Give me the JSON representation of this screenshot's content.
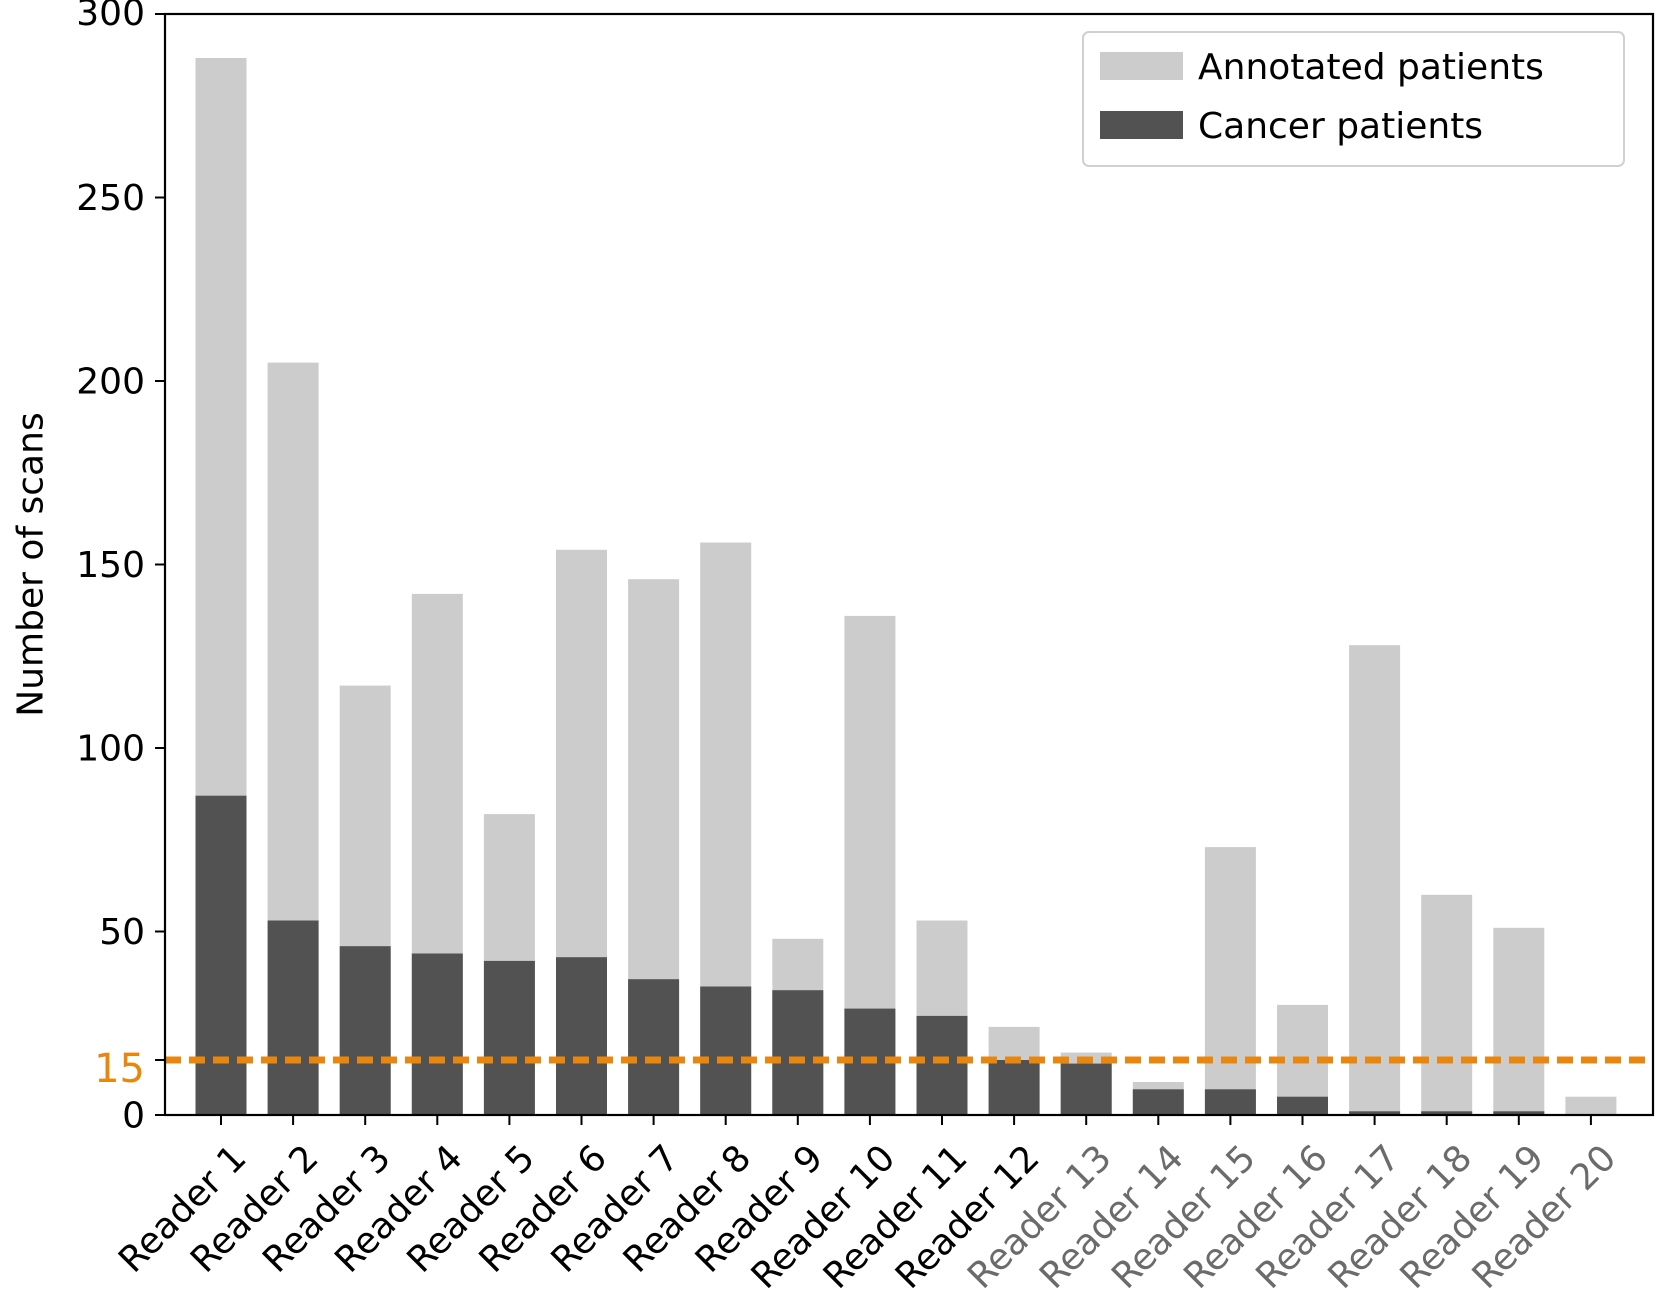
{
  "chart_data": {
    "type": "bar",
    "stacked": "overlay",
    "title": "",
    "xlabel": "",
    "ylabel": "Number of scans",
    "ylim": [
      0,
      300
    ],
    "yticks": [
      0,
      50,
      100,
      150,
      200,
      250,
      300
    ],
    "categories": [
      "Reader 1",
      "Reader 2",
      "Reader 3",
      "Reader 4",
      "Reader 5",
      "Reader 6",
      "Reader 7",
      "Reader 8",
      "Reader 9",
      "Reader 10",
      "Reader 11",
      "Reader 12",
      "Reader 13",
      "Reader 14",
      "Reader 15",
      "Reader 16",
      "Reader 17",
      "Reader 18",
      "Reader 19",
      "Reader 20"
    ],
    "category_colors": [
      "#000000",
      "#000000",
      "#000000",
      "#000000",
      "#000000",
      "#000000",
      "#000000",
      "#000000",
      "#000000",
      "#000000",
      "#000000",
      "#000000",
      "#6b6b6b",
      "#6b6b6b",
      "#6b6b6b",
      "#6b6b6b",
      "#6b6b6b",
      "#6b6b6b",
      "#6b6b6b",
      "#6b6b6b"
    ],
    "series": [
      {
        "name": "Annotated patients",
        "color": "#cccccc",
        "values": [
          288,
          205,
          117,
          142,
          82,
          154,
          146,
          156,
          48,
          136,
          53,
          24,
          17,
          9,
          73,
          30,
          128,
          60,
          51,
          5
        ]
      },
      {
        "name": "Cancer patients",
        "color": "#525252",
        "values": [
          87,
          53,
          46,
          44,
          42,
          43,
          37,
          35,
          34,
          29,
          27,
          15,
          14,
          7,
          7,
          5,
          1,
          1,
          1,
          0
        ]
      }
    ],
    "threshold": {
      "value": 15,
      "label": "15",
      "color": "#e8870f"
    },
    "grid": false,
    "legend_position": "top-right"
  }
}
